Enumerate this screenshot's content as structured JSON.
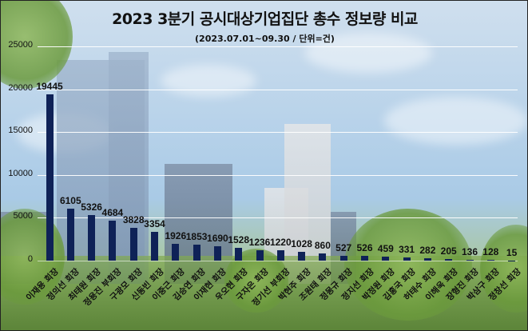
{
  "title": "2023 3분기 공시대상기업집단 총수 정보량 비교",
  "subtitle": "(2023.07.01~09.30 / 단위=건)",
  "colors": {
    "bar": "#0f2257",
    "gridline": "#ffffff",
    "text": "#111111"
  },
  "chart_data": {
    "type": "bar",
    "title": "2023 3분기 공시대상기업집단 총수 정보량 비교",
    "subtitle": "(2023.07.01~09.30 / 단위=건)",
    "xlabel": "",
    "ylabel": "",
    "ylim": [
      0,
      25000
    ],
    "yticks": [
      0,
      5000,
      10000,
      15000,
      20000,
      25000
    ],
    "grid": true,
    "legend": "none",
    "categories": [
      "이재용 회장",
      "정의선 회장",
      "최태원 회장",
      "정용진 부회장",
      "구광모 회장",
      "신동빈 회장",
      "이중근 회장",
      "김승연 회장",
      "이재현 회장",
      "우오현 회장",
      "구자은 회장",
      "정기선 부회장",
      "박현주 회장",
      "조원태 회장",
      "정몽규 회장",
      "정지선 회장",
      "박정원 회장",
      "김홍국 회장",
      "허태수 회장",
      "이해욱 회장",
      "장형진 회장",
      "박삼구 회장",
      "정창선 회장"
    ],
    "values": [
      19445,
      6105,
      5326,
      4684,
      3828,
      3354,
      1926,
      1853,
      1690,
      1528,
      1236,
      1220,
      1028,
      860,
      527,
      526,
      459,
      331,
      282,
      205,
      136,
      128,
      15
    ]
  }
}
